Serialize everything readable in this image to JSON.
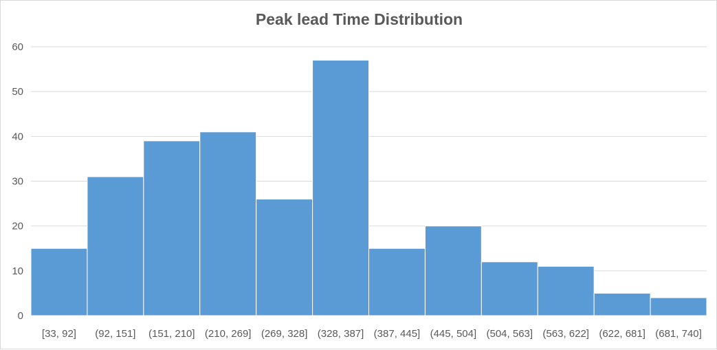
{
  "chart_data": {
    "type": "bar",
    "title": "Peak lead Time Distribution",
    "xlabel": "",
    "ylabel": "",
    "categories": [
      "[33, 92]",
      "(92, 151]",
      "(151, 210]",
      "(210, 269]",
      "(269, 328]",
      "(328, 387]",
      "(387, 445]",
      "(445, 504]",
      "(504, 563]",
      "(563, 622]",
      "(622, 681]",
      "(681, 740]"
    ],
    "values": [
      15,
      31,
      39,
      41,
      26,
      57,
      15,
      20,
      12,
      11,
      5,
      4
    ],
    "ylim": [
      0,
      60
    ],
    "yticks": [
      0,
      10,
      20,
      30,
      40,
      50,
      60
    ],
    "grid": true,
    "legend": "none",
    "bar_color": "#5b9bd5",
    "grid_color": "#d9d9d9"
  }
}
